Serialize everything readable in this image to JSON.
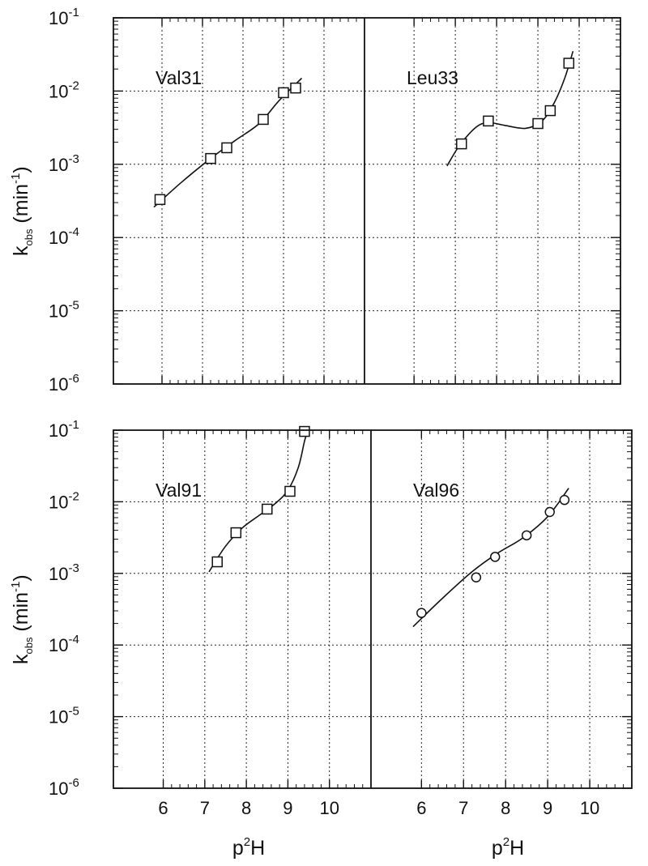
{
  "chart_data": [
    {
      "type": "scatter",
      "yscale": "log",
      "ylim": [
        1e-06,
        0.1
      ],
      "xlim": [
        4.8,
        11
      ],
      "grid": true,
      "ylabel": {
        "base": "k",
        "sub": "obs",
        "unit": "(min",
        "unit_sup": "-1",
        "unit_close": ")"
      },
      "yticks": [
        {
          "base": "10",
          "exp": "-1",
          "value": 0.1
        },
        {
          "base": "10",
          "exp": "-2",
          "value": 0.01
        },
        {
          "base": "10",
          "exp": "-3",
          "value": 0.001
        },
        {
          "base": "10",
          "exp": "-4",
          "value": 0.0001
        },
        {
          "base": "10",
          "exp": "-5",
          "value": 1e-05
        },
        {
          "base": "10",
          "exp": "-6",
          "value": 1e-06
        }
      ],
      "panels": [
        {
          "label": "Val31",
          "marker": "square",
          "x": [
            5.95,
            7.2,
            7.6,
            8.5,
            9.0,
            9.3
          ],
          "y": [
            0.00033,
            0.0012,
            0.00168,
            0.0041,
            0.0095,
            0.011
          ],
          "fit": [
            [
              5.8,
              0.00026
            ],
            [
              6.5,
              0.00058
            ],
            [
              7.2,
              0.0012
            ],
            [
              7.8,
              0.0021
            ],
            [
              8.4,
              0.0036
            ],
            [
              8.9,
              0.0075
            ],
            [
              9.45,
              0.015
            ]
          ]
        },
        {
          "label": "Leu33",
          "marker": "square",
          "x": [
            7.15,
            7.8,
            9.0,
            9.3,
            9.75
          ],
          "y": [
            0.0019,
            0.0039,
            0.0036,
            0.0054,
            0.024
          ],
          "fit": [
            [
              6.8,
              0.00095
            ],
            [
              7.1,
              0.0018
            ],
            [
              7.5,
              0.0032
            ],
            [
              7.8,
              0.0037
            ],
            [
              8.2,
              0.0034
            ],
            [
              8.7,
              0.0031
            ],
            [
              9.1,
              0.0039
            ],
            [
              9.4,
              0.007
            ],
            [
              9.65,
              0.015
            ],
            [
              9.85,
              0.035
            ]
          ]
        }
      ]
    },
    {
      "type": "scatter",
      "yscale": "log",
      "ylim": [
        1e-06,
        0.1
      ],
      "xlim": [
        4.8,
        11
      ],
      "grid": true,
      "xlabel": {
        "base": "p",
        "sup": "2",
        "rest": "H"
      },
      "xticks": [
        "6",
        "7",
        "8",
        "9",
        "10"
      ],
      "ylabel": {
        "base": "k",
        "sub": "obs",
        "unit": "(min",
        "unit_sup": "-1",
        "unit_close": ")"
      },
      "yticks": [
        {
          "base": "10",
          "exp": "-1",
          "value": 0.1
        },
        {
          "base": "10",
          "exp": "-2",
          "value": 0.01
        },
        {
          "base": "10",
          "exp": "-3",
          "value": 0.001
        },
        {
          "base": "10",
          "exp": "-4",
          "value": 0.0001
        },
        {
          "base": "10",
          "exp": "-5",
          "value": 1e-05
        },
        {
          "base": "10",
          "exp": "-6",
          "value": 1e-06
        }
      ],
      "panels": [
        {
          "label": "Val91",
          "marker": "square",
          "x": [
            7.3,
            7.75,
            8.5,
            9.05,
            9.4
          ],
          "y": [
            0.00145,
            0.0037,
            0.0079,
            0.014,
            0.096
          ],
          "fit": [
            [
              7.1,
              0.00105
            ],
            [
              7.5,
              0.0024
            ],
            [
              7.9,
              0.0043
            ],
            [
              8.3,
              0.0064
            ],
            [
              8.7,
              0.0095
            ],
            [
              9.0,
              0.0145
            ],
            [
              9.25,
              0.03
            ],
            [
              9.4,
              0.07
            ],
            [
              9.5,
              0.11
            ]
          ]
        },
        {
          "label": "Val96",
          "marker": "circle",
          "x": [
            6.0,
            7.3,
            7.75,
            8.5,
            9.05,
            9.4
          ],
          "y": [
            0.00028,
            0.00088,
            0.0017,
            0.0034,
            0.0072,
            0.0106
          ],
          "fit": [
            [
              5.8,
              0.00018
            ],
            [
              6.5,
              0.00045
            ],
            [
              7.2,
              0.00105
            ],
            [
              7.8,
              0.0019
            ],
            [
              8.4,
              0.0031
            ],
            [
              9.0,
              0.0062
            ],
            [
              9.5,
              0.0155
            ]
          ]
        }
      ]
    }
  ]
}
